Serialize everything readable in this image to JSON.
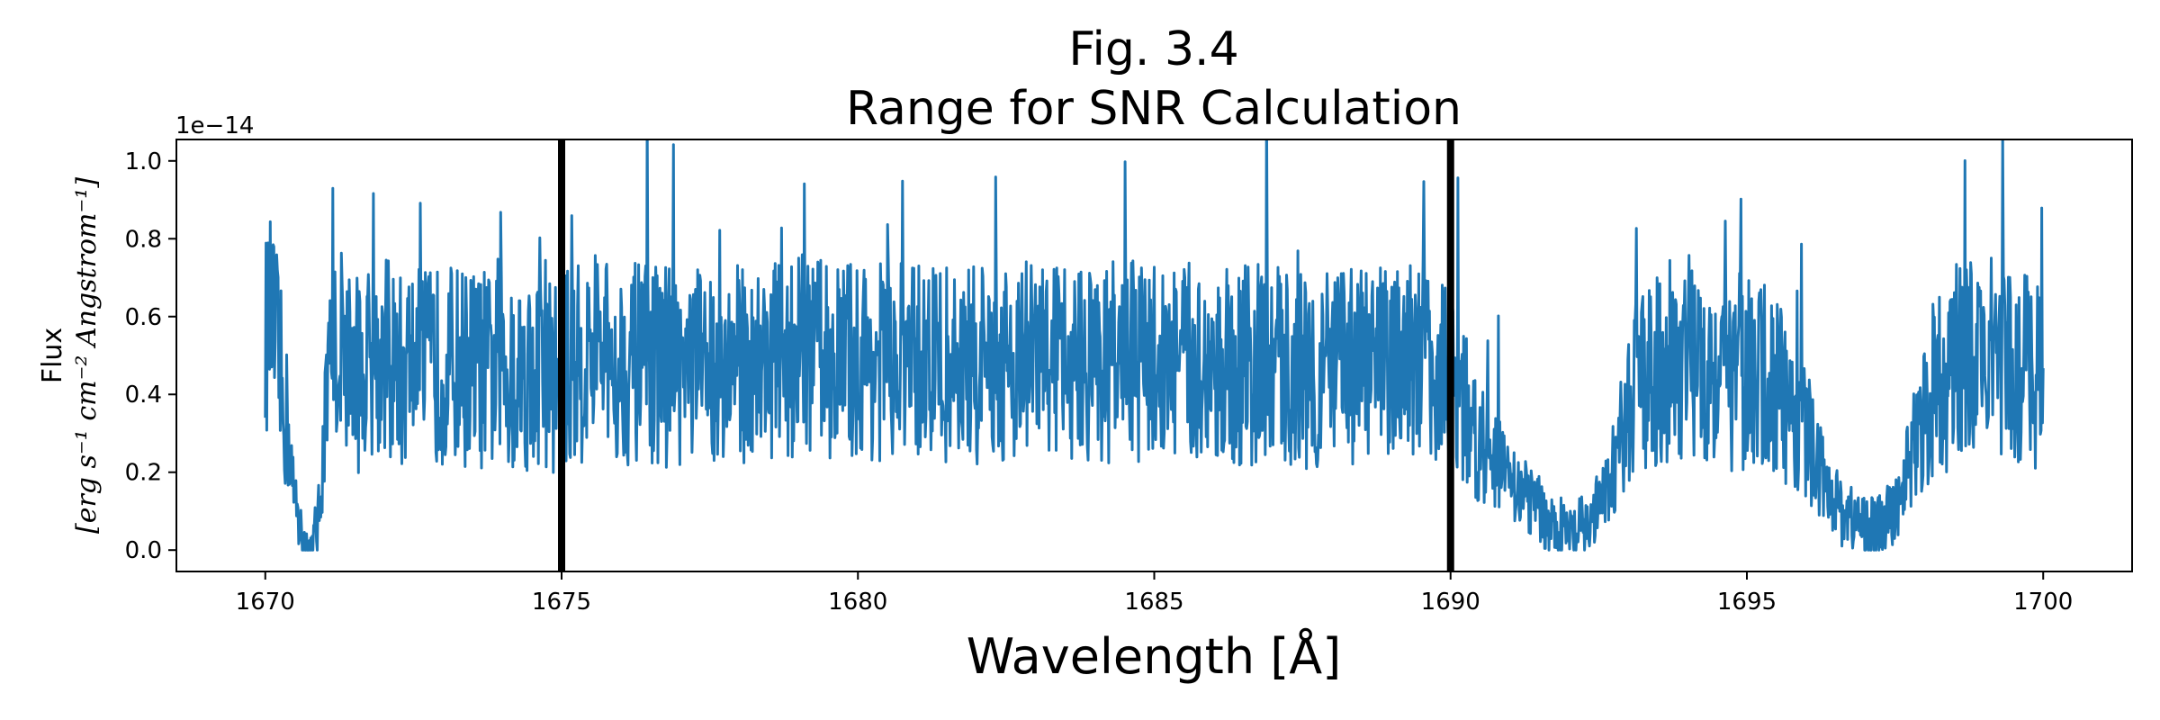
{
  "chart_data": {
    "type": "line",
    "title": "Fig. 3.4",
    "subtitle": "Range for SNR Calculation",
    "xlabel": "Wavelength [Å]",
    "ylabel_line1": "Flux",
    "ylabel_line2": "[erg s⁻¹ cm⁻² Angstrom⁻¹]",
    "y_offset_label": "1e−14",
    "xlim": [
      1668.5,
      1701.5
    ],
    "ylim": [
      -0.055,
      1.055
    ],
    "x_ticks": [
      1670,
      1675,
      1680,
      1685,
      1690,
      1695,
      1700
    ],
    "x_tick_labels": [
      "1670",
      "1675",
      "1680",
      "1685",
      "1690",
      "1695",
      "1700"
    ],
    "y_ticks": [
      0.0,
      0.2,
      0.4,
      0.6,
      0.8,
      1.0
    ],
    "y_tick_labels": [
      "0.0",
      "0.2",
      "0.4",
      "0.6",
      "0.8",
      "1.0"
    ],
    "grid": false,
    "line_color": "#1f77b4",
    "vertical_lines": [
      {
        "x": 1675,
        "color": "#000000"
      },
      {
        "x": 1690,
        "color": "#000000"
      }
    ],
    "series": [
      {
        "x": [
          1670.0,
          1670.1,
          1670.2,
          1670.3,
          1670.4,
          1670.5,
          1670.6,
          1670.7,
          1670.8,
          1670.9,
          1671.0,
          1671.1,
          1671.2,
          1671.3,
          1671.5,
          1671.8,
          1672.0,
          1672.3,
          1672.5,
          1672.7,
          1673.0,
          1673.5,
          1674.0,
          1674.5,
          1675.0,
          1675.5,
          1676.0,
          1677.0,
          1678.0,
          1679.0,
          1680.0,
          1681.0,
          1682.0,
          1683.0,
          1684.0,
          1685.0,
          1686.0,
          1687.0,
          1688.0,
          1689.0,
          1689.6,
          1690.0,
          1690.3,
          1690.6,
          1690.9,
          1691.2,
          1691.5,
          1691.8,
          1692.1,
          1692.4,
          1692.7,
          1693.0,
          1693.5,
          1694.0,
          1694.5,
          1695.0,
          1695.5,
          1696.0,
          1696.3,
          1696.6,
          1696.9,
          1697.2,
          1697.5,
          1697.8,
          1698.1,
          1698.5,
          1699.0,
          1699.5,
          1700.0
        ],
        "y": [
          0.55,
          0.6,
          0.5,
          0.38,
          0.3,
          0.1,
          0.05,
          0.0,
          0.0,
          0.08,
          0.3,
          0.45,
          0.5,
          0.55,
          0.45,
          0.48,
          0.5,
          0.45,
          0.5,
          0.46,
          0.48,
          0.47,
          0.45,
          0.46,
          0.45,
          0.5,
          0.48,
          0.47,
          0.48,
          0.5,
          0.49,
          0.48,
          0.47,
          0.5,
          0.48,
          0.49,
          0.47,
          0.48,
          0.46,
          0.48,
          0.5,
          0.45,
          0.35,
          0.25,
          0.2,
          0.15,
          0.1,
          0.05,
          0.03,
          0.08,
          0.18,
          0.35,
          0.48,
          0.5,
          0.47,
          0.45,
          0.42,
          0.3,
          0.18,
          0.1,
          0.07,
          0.05,
          0.1,
          0.25,
          0.4,
          0.48,
          0.5,
          0.47,
          0.45
        ]
      }
    ]
  }
}
